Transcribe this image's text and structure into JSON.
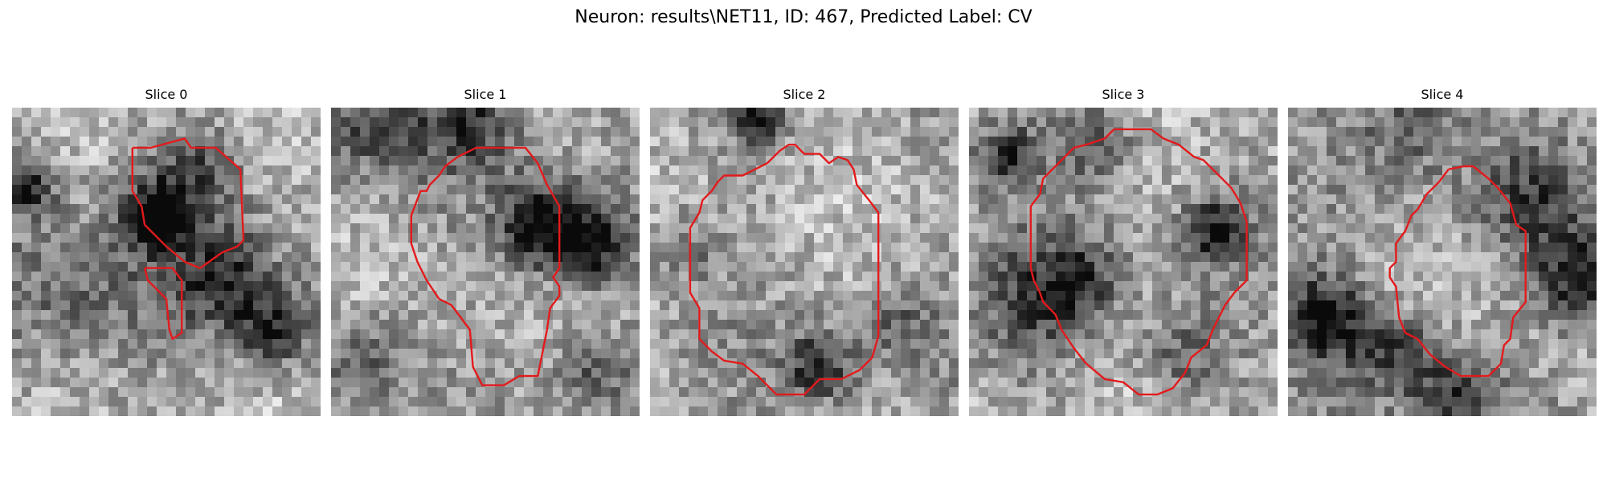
{
  "figure": {
    "title": "Neuron: results\\NET11, ID: 467, Predicted Label: CV"
  },
  "panels": [
    {
      "title": "Slice 0"
    },
    {
      "title": "Slice 1"
    },
    {
      "title": "Slice 2"
    },
    {
      "title": "Slice 3"
    },
    {
      "title": "Slice 4"
    }
  ],
  "colors": {
    "contour": "#e31a1c",
    "background": "#ffffff"
  }
}
